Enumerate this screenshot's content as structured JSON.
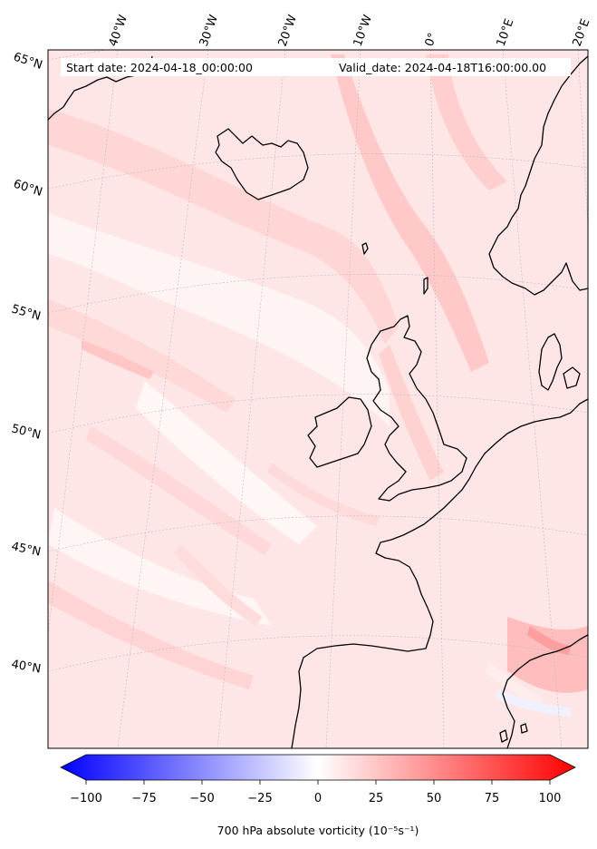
{
  "header": {
    "start_date": "Start date: 2024-04-18_00:00:00",
    "valid_date": "Valid_date: 2024-04-18T16:00:00.00"
  },
  "axes": {
    "longitude_labels": [
      "40°W",
      "30°W",
      "20°W",
      "10°W",
      "0°",
      "10°E",
      "20°E"
    ],
    "latitude_labels": [
      "65°N",
      "60°N",
      "55°N",
      "50°N",
      "45°N",
      "40°N"
    ]
  },
  "colorbar": {
    "label": "700 hPa absolute vorticity (10⁻⁵s⁻¹)",
    "tick_labels": [
      "−100",
      "−75",
      "−50",
      "−25",
      "0",
      "25",
      "50",
      "75",
      "100"
    ],
    "min": -100,
    "max": 100,
    "low_color": "#0000ff",
    "mid_color": "#ffffff",
    "high_color": "#ff0000"
  },
  "map": {
    "field_color": "#ffe3e3",
    "coast_color": "#000000",
    "grid_color": "#bbbbbb"
  }
}
